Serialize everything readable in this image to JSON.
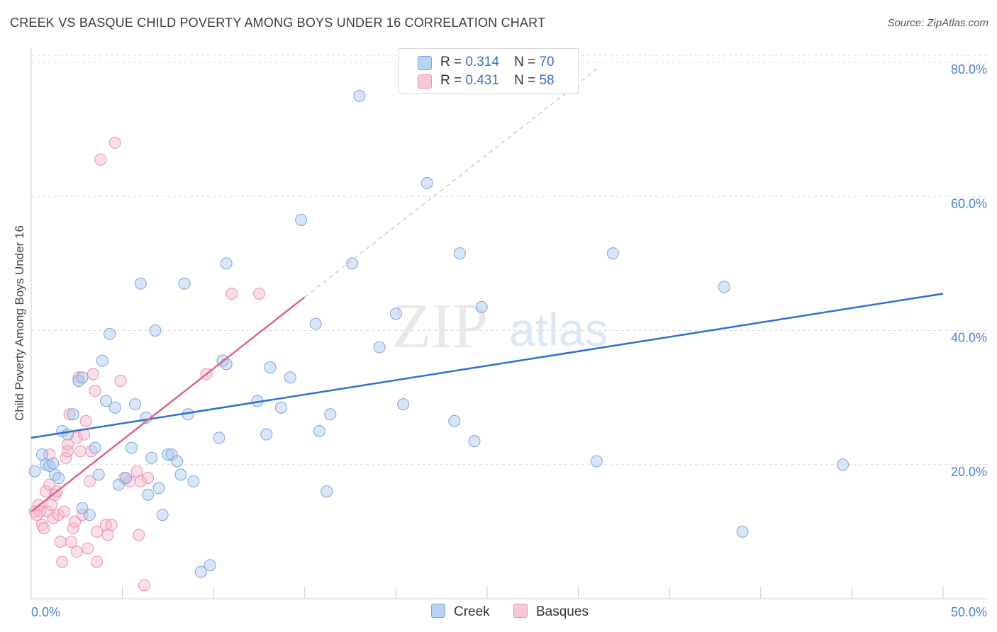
{
  "title": "CREEK VS BASQUE CHILD POVERTY AMONG BOYS UNDER 16 CORRELATION CHART",
  "source": "Source: ZipAtlas.com",
  "watermark": {
    "zip": "ZIP",
    "atlas": "atlas"
  },
  "legend": {
    "r_label": "R =",
    "n_label": "N =",
    "creek": {
      "r": "0.314",
      "n": "70"
    },
    "basques": {
      "r": "0.431",
      "n": "58"
    }
  },
  "colors": {
    "creek_fill": "#a8c8f0",
    "creek_stroke": "#7aa5dd",
    "creek_line": "#2f6fd1",
    "basques_fill": "#f5b9cb",
    "basques_stroke": "#ec8fab",
    "basques_line": "#e4608b",
    "tick_text": "#4a7fcf",
    "grid": "#dcdcdc"
  },
  "chart_data": {
    "type": "scatter",
    "title": "CREEK VS BASQUE CHILD POVERTY AMONG BOYS UNDER 16 CORRELATION CHART",
    "xlabel": "",
    "ylabel": "Child Poverty Among Boys Under 16",
    "xlim": [
      0,
      50
    ],
    "ylim": [
      0,
      85
    ],
    "x_tick_labels": [
      "0.0%",
      "50.0%"
    ],
    "y_ticks": [
      20,
      40,
      60,
      80
    ],
    "y_tick_labels": [
      "20.0%",
      "40.0%",
      "60.0%",
      "80.0%"
    ],
    "series": [
      {
        "name": "Creek",
        "points": [
          [
            0.2,
            19
          ],
          [
            0.6,
            21.5
          ],
          [
            0.8,
            20
          ],
          [
            1.0,
            19.8
          ],
          [
            1.2,
            20.2
          ],
          [
            1.3,
            18.5
          ],
          [
            1.5,
            18
          ],
          [
            1.7,
            25
          ],
          [
            2.0,
            24.5
          ],
          [
            2.3,
            27.5
          ],
          [
            2.6,
            32.5
          ],
          [
            2.8,
            33
          ],
          [
            2.8,
            13.5
          ],
          [
            3.2,
            12.5
          ],
          [
            3.5,
            22.5
          ],
          [
            3.7,
            18.5
          ],
          [
            3.9,
            35.5
          ],
          [
            4.1,
            29.5
          ],
          [
            4.3,
            39.5
          ],
          [
            4.6,
            28.5
          ],
          [
            4.8,
            17
          ],
          [
            5.2,
            18
          ],
          [
            5.5,
            22.5
          ],
          [
            5.7,
            29
          ],
          [
            6.0,
            47
          ],
          [
            6.3,
            27
          ],
          [
            6.4,
            15.5
          ],
          [
            6.6,
            21
          ],
          [
            6.8,
            40
          ],
          [
            7.0,
            16.5
          ],
          [
            7.2,
            12.5
          ],
          [
            7.5,
            21.5
          ],
          [
            7.7,
            21.5
          ],
          [
            8.0,
            20.5
          ],
          [
            8.2,
            18.5
          ],
          [
            8.4,
            47
          ],
          [
            8.6,
            27.5
          ],
          [
            8.9,
            17.5
          ],
          [
            9.3,
            4
          ],
          [
            9.8,
            5
          ],
          [
            10.3,
            24
          ],
          [
            10.5,
            35.5
          ],
          [
            10.7,
            35
          ],
          [
            10.7,
            50
          ],
          [
            12.4,
            29.5
          ],
          [
            12.9,
            24.5
          ],
          [
            13.1,
            34.5
          ],
          [
            13.7,
            28.5
          ],
          [
            14.2,
            33
          ],
          [
            14.8,
            56.5
          ],
          [
            15.6,
            41
          ],
          [
            15.8,
            25
          ],
          [
            16.2,
            16
          ],
          [
            16.4,
            27.5
          ],
          [
            17.6,
            50
          ],
          [
            18.0,
            75
          ],
          [
            19.1,
            37.5
          ],
          [
            20.0,
            42.5
          ],
          [
            20.4,
            29
          ],
          [
            21.7,
            62
          ],
          [
            23.2,
            26.5
          ],
          [
            23.5,
            51.5
          ],
          [
            24.3,
            23.5
          ],
          [
            24.7,
            43.5
          ],
          [
            31.0,
            20.5
          ],
          [
            31.9,
            51.5
          ],
          [
            38.0,
            46.5
          ],
          [
            39.0,
            10
          ],
          [
            44.5,
            20
          ]
        ]
      },
      {
        "name": "Basques",
        "points": [
          [
            0.2,
            13
          ],
          [
            0.3,
            12.5
          ],
          [
            0.4,
            14
          ],
          [
            0.5,
            13
          ],
          [
            0.6,
            11
          ],
          [
            0.7,
            10.5
          ],
          [
            0.8,
            16
          ],
          [
            0.9,
            13
          ],
          [
            1.0,
            21.5
          ],
          [
            1.0,
            17
          ],
          [
            1.1,
            14
          ],
          [
            1.2,
            12
          ],
          [
            1.3,
            15.5
          ],
          [
            1.4,
            16
          ],
          [
            1.5,
            12.5
          ],
          [
            1.6,
            8.5
          ],
          [
            1.7,
            5.5
          ],
          [
            1.8,
            13
          ],
          [
            1.9,
            21
          ],
          [
            2.0,
            23
          ],
          [
            2.0,
            22
          ],
          [
            2.1,
            27.5
          ],
          [
            2.2,
            8.5
          ],
          [
            2.3,
            10.5
          ],
          [
            2.4,
            11.5
          ],
          [
            2.5,
            7
          ],
          [
            2.5,
            24
          ],
          [
            2.6,
            33
          ],
          [
            2.7,
            22
          ],
          [
            2.8,
            12.5
          ],
          [
            2.9,
            24.5
          ],
          [
            3.0,
            26.5
          ],
          [
            3.1,
            7.5
          ],
          [
            3.2,
            17.5
          ],
          [
            3.3,
            22
          ],
          [
            3.4,
            33.5
          ],
          [
            3.5,
            31
          ],
          [
            3.6,
            5.5
          ],
          [
            3.6,
            10
          ],
          [
            3.8,
            65.5
          ],
          [
            4.1,
            11
          ],
          [
            4.2,
            9.5
          ],
          [
            4.4,
            11
          ],
          [
            4.6,
            68
          ],
          [
            4.9,
            32.5
          ],
          [
            5.1,
            18
          ],
          [
            5.4,
            17.5
          ],
          [
            5.8,
            19
          ],
          [
            5.9,
            9.5
          ],
          [
            6.0,
            17.5
          ],
          [
            6.2,
            2
          ],
          [
            6.4,
            18
          ],
          [
            9.6,
            33.5
          ],
          [
            11.0,
            45.5
          ],
          [
            12.5,
            45.5
          ]
        ]
      }
    ],
    "trend_lines": [
      {
        "name": "Creek",
        "x": [
          0,
          50
        ],
        "y": [
          24,
          45.5
        ]
      },
      {
        "name": "Basques",
        "x": [
          0,
          15
        ],
        "y": [
          13,
          45
        ],
        "dashed_extension_to": [
          31,
          79
        ]
      }
    ]
  },
  "bottom_legend": {
    "creek": "Creek",
    "basques": "Basques"
  }
}
